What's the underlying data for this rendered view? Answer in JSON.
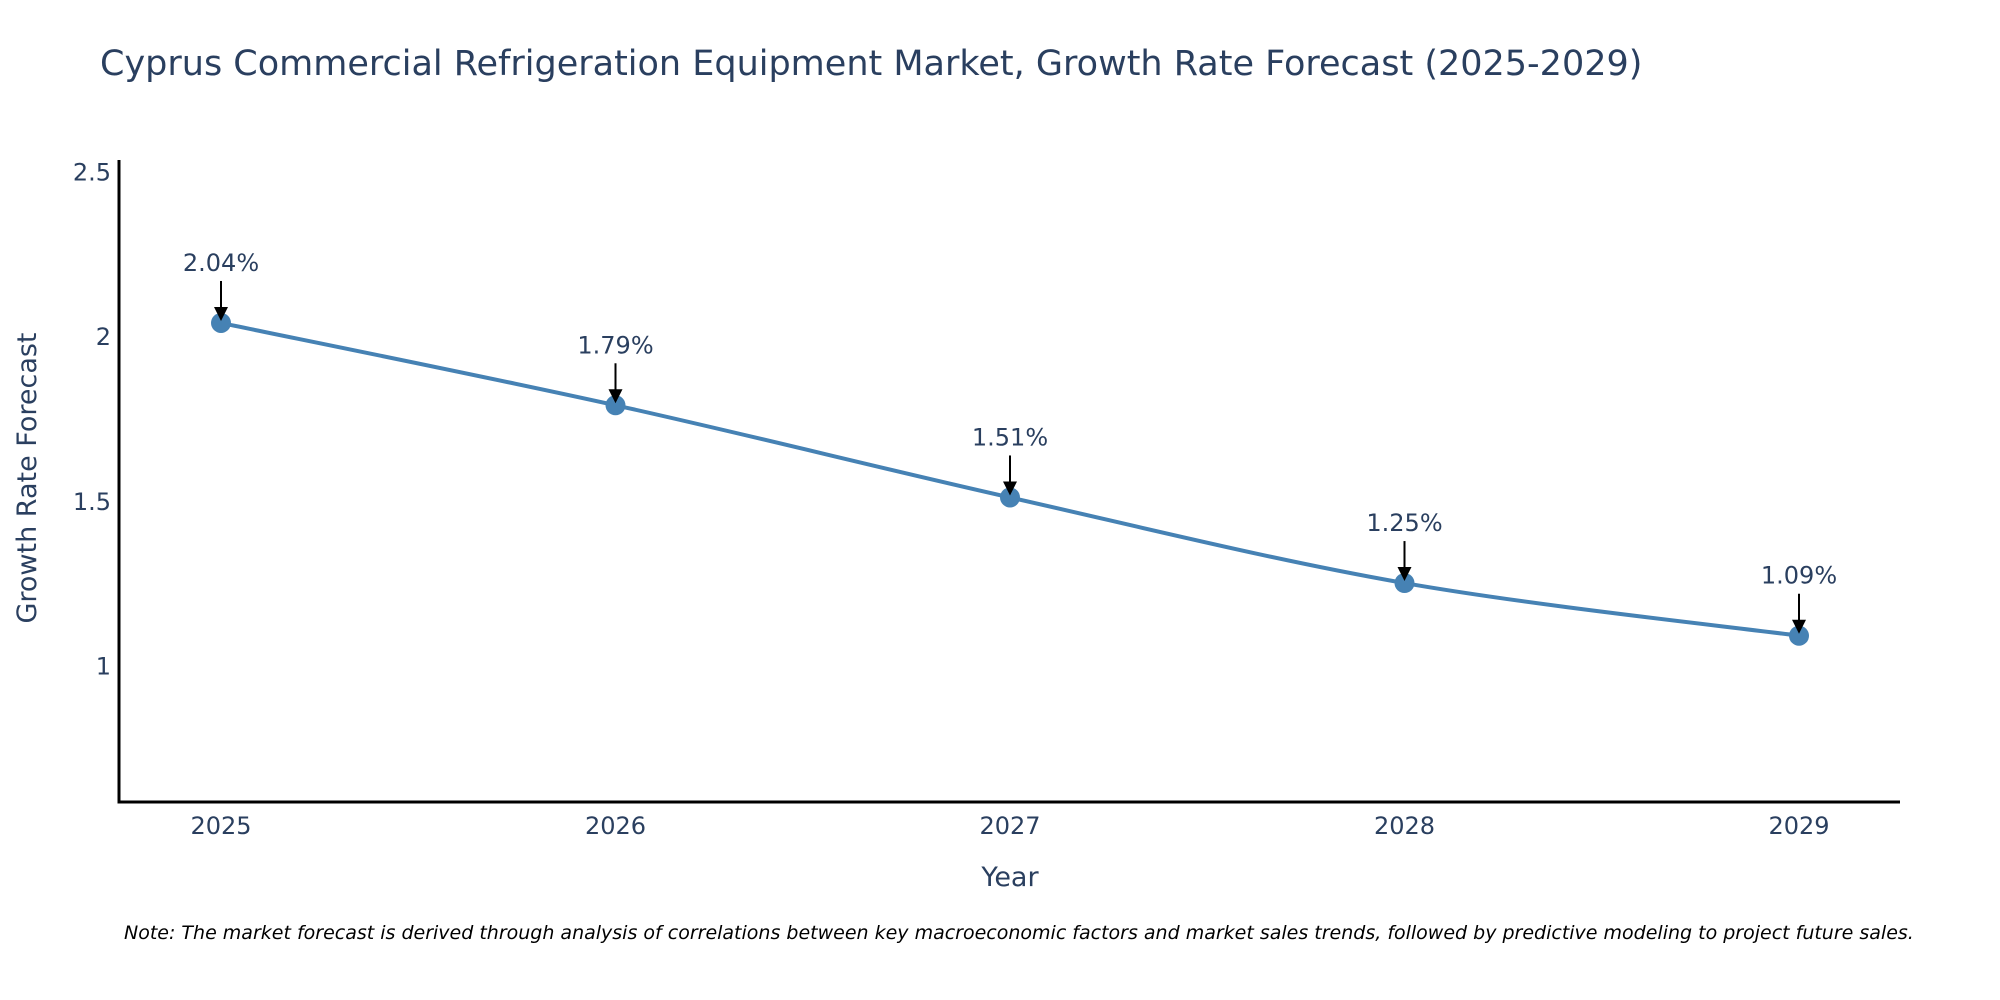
{
  "chart_data": {
    "type": "line",
    "title": "Cyprus Commercial Refrigeration Equipment Market, Growth Rate Forecast (2025-2029)",
    "xlabel": "Year",
    "ylabel": "Growth Rate Forecast",
    "categories": [
      "2025",
      "2026",
      "2027",
      "2028",
      "2029"
    ],
    "values": [
      2.04,
      1.79,
      1.51,
      1.25,
      1.09
    ],
    "data_labels": [
      "2.04%",
      "1.79%",
      "1.51%",
      "1.25%",
      "1.09%"
    ],
    "yticks": [
      1,
      1.5,
      2,
      2.5
    ],
    "ytick_labels": [
      "1",
      "1.5",
      "2",
      "2.5"
    ],
    "ylim": [
      0.585,
      2.535
    ],
    "grid": false,
    "line_color": "#4682b4",
    "marker_color": "#4682b4",
    "arrow_color": "#000000"
  },
  "note": "Note: The market forecast is derived through analysis of correlations between key macroeconomic factors and market sales trends, followed by predictive modeling to project future sales."
}
